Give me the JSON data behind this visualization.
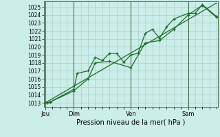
{
  "background_color": "#cceee8",
  "plot_bg_color": "#cceee8",
  "grid_color": "#aacccc",
  "line_color": "#1a6b2a",
  "xlabel": "Pression niveau de la mer( hPa )",
  "ylim": [
    1012.5,
    1025.7
  ],
  "yticks": [
    1013,
    1014,
    1015,
    1016,
    1017,
    1018,
    1019,
    1020,
    1021,
    1022,
    1023,
    1024,
    1025
  ],
  "xlim": [
    -2,
    290
  ],
  "day_positions": [
    0,
    48,
    144,
    240
  ],
  "day_labels": [
    "Jeu",
    "Dim",
    "Ven",
    "Sam"
  ],
  "series1_x": [
    0,
    4,
    8,
    48,
    54,
    72,
    84,
    96,
    108,
    120,
    132,
    144,
    156,
    168,
    180,
    192,
    204,
    216,
    240,
    252,
    264,
    288
  ],
  "series1_y": [
    1013.0,
    1013.0,
    1013.1,
    1014.7,
    1016.7,
    1017.0,
    1018.7,
    1018.3,
    1019.2,
    1019.2,
    1018.1,
    1019.0,
    1019.2,
    1021.7,
    1022.2,
    1021.1,
    1022.5,
    1023.5,
    1024.2,
    1024.2,
    1025.3,
    1023.8
  ],
  "series2_x": [
    0,
    8,
    48,
    72,
    84,
    108,
    144,
    168,
    192,
    216,
    240,
    264,
    288
  ],
  "series2_y": [
    1013.0,
    1013.1,
    1014.5,
    1016.0,
    1018.0,
    1018.2,
    1017.4,
    1020.5,
    1020.8,
    1022.2,
    1024.0,
    1025.2,
    1023.7
  ],
  "trend_x": [
    0,
    288
  ],
  "trend_y": [
    1013.0,
    1025.5
  ],
  "xlabel_fontsize": 7,
  "ytick_fontsize": 5.5,
  "xtick_fontsize": 6
}
